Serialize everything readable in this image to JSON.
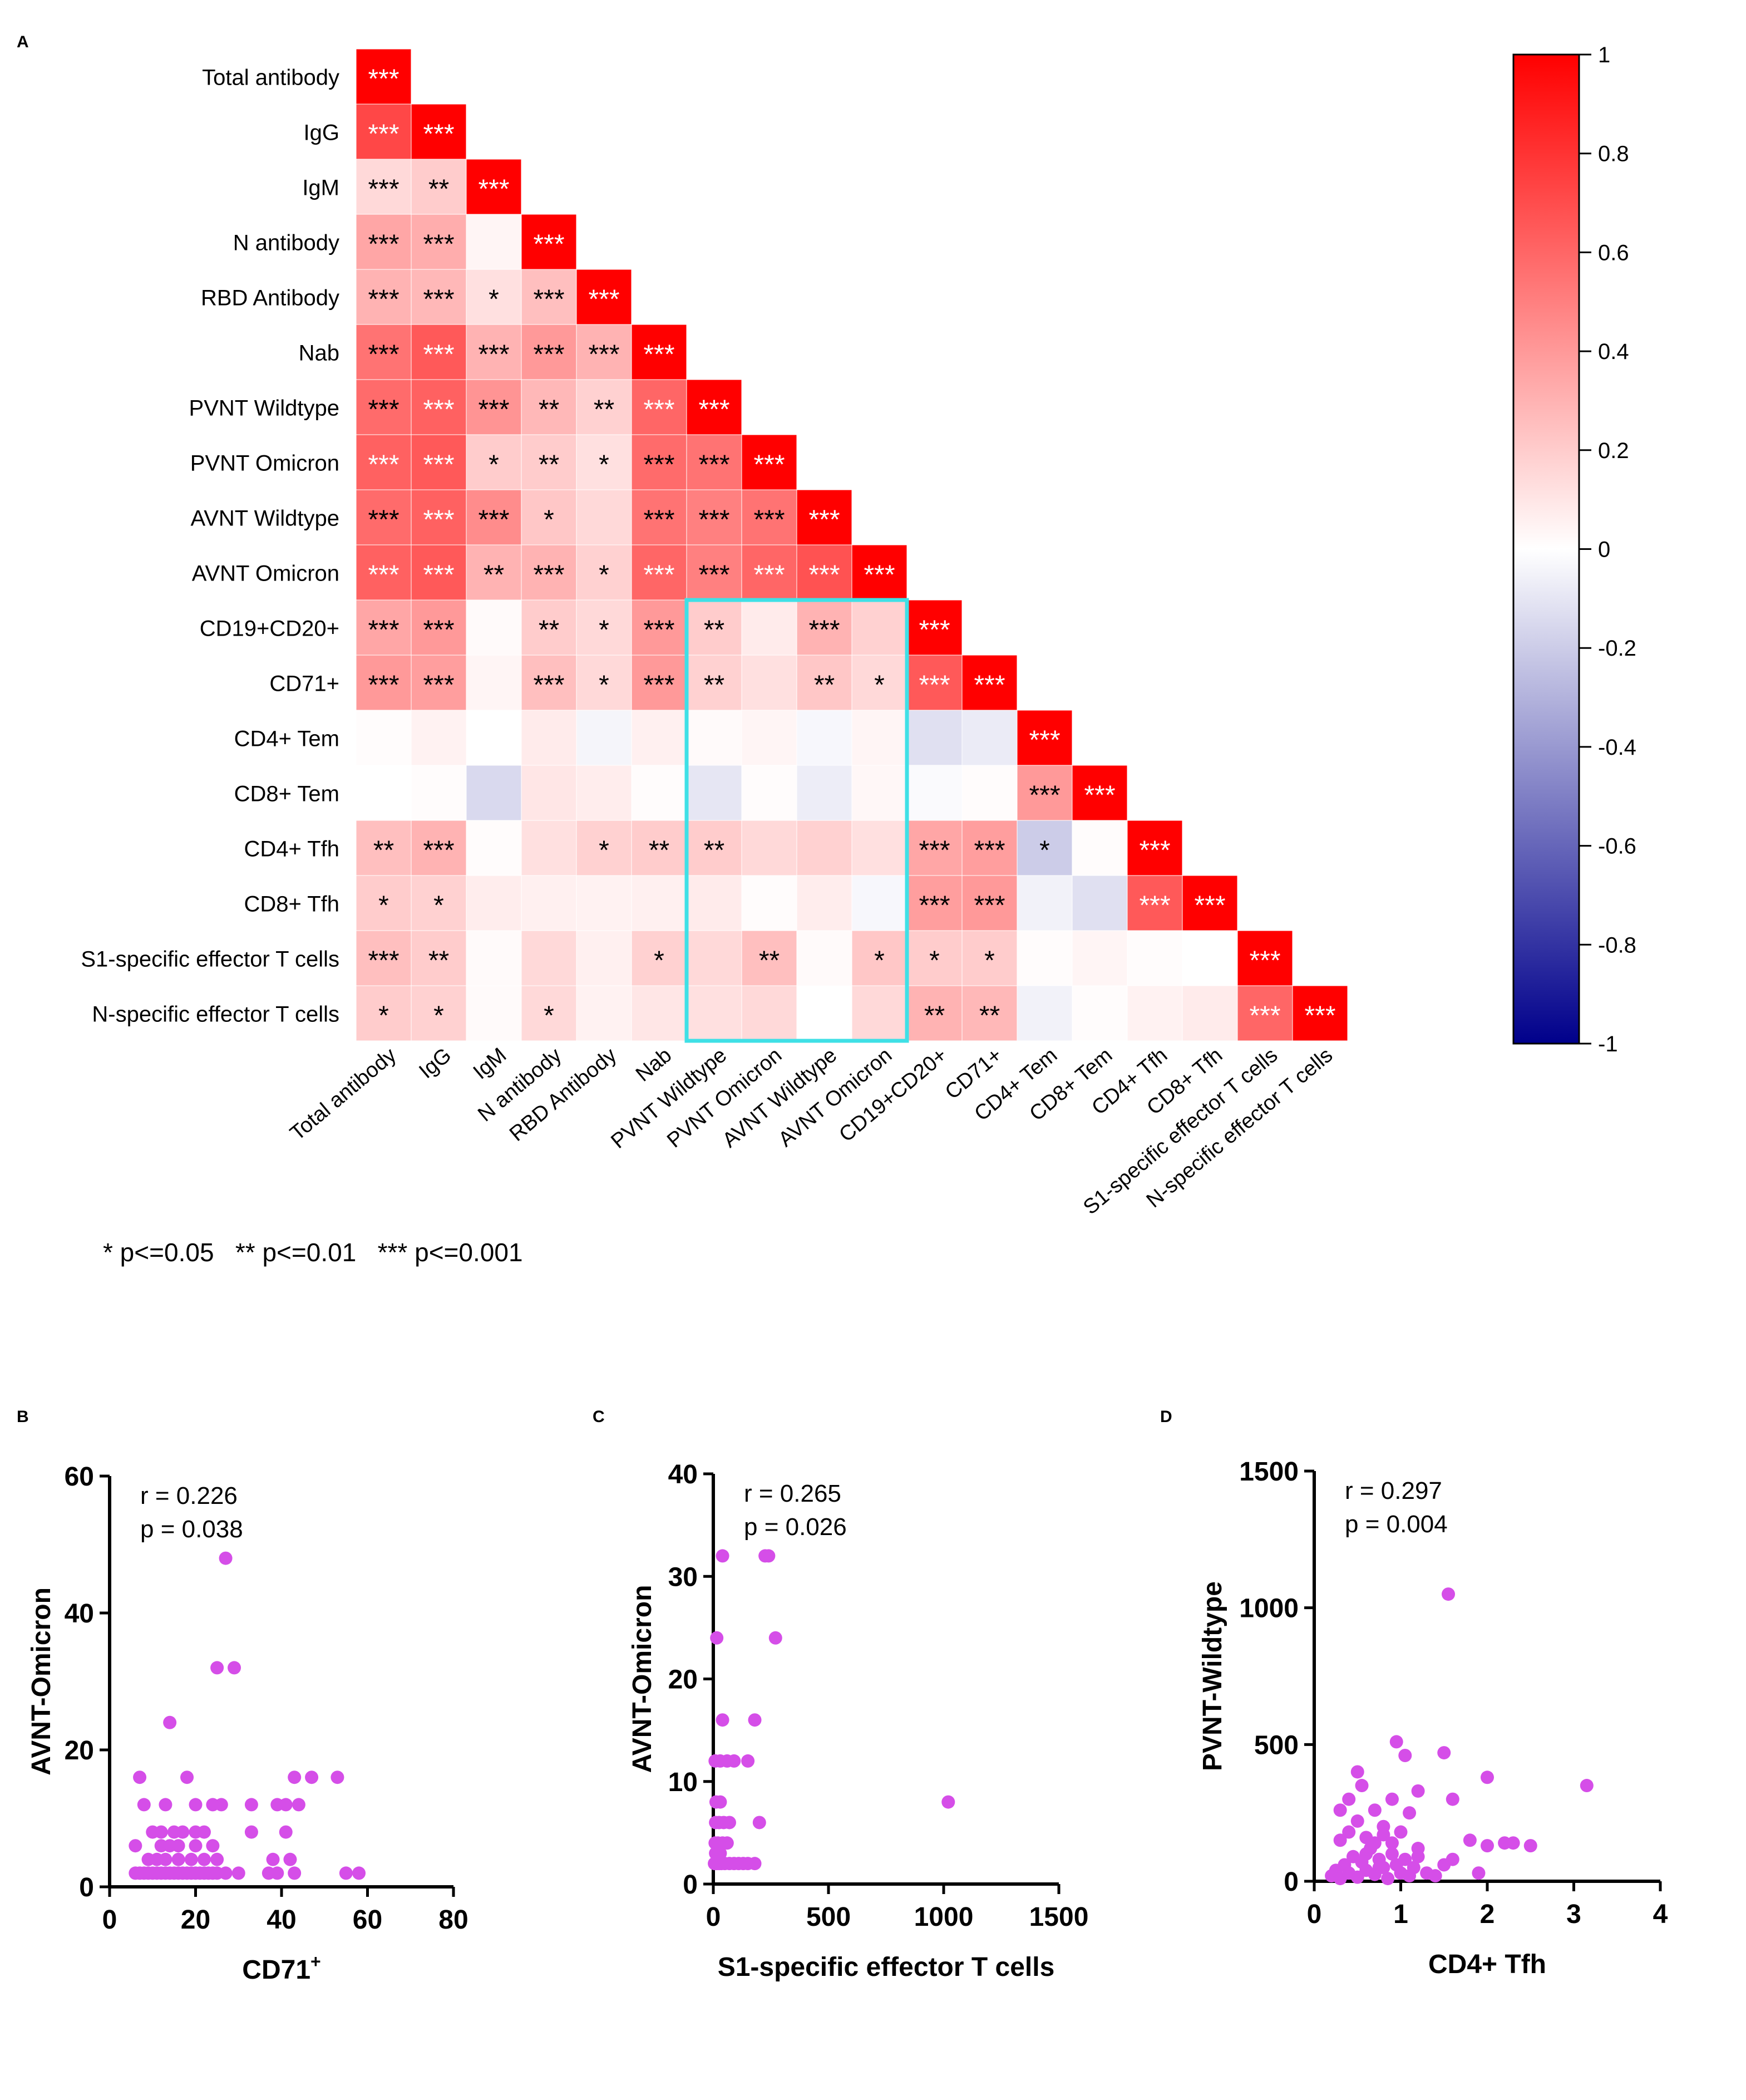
{
  "panel_labels": {
    "a": "A",
    "b": "B",
    "c": "C",
    "d": "D"
  },
  "significance_legend": "* p<=0.05   ** p<=0.01   *** p<=0.001",
  "chart_data": [
    {
      "type": "heatmap",
      "panel": "A",
      "title": "",
      "variables": [
        "Total antibody",
        "IgG",
        "IgM",
        "N antibody",
        "RBD Antibody",
        "Nab",
        "PVNT Wildtype",
        "PVNT Omicron",
        "AVNT Wildtype",
        "AVNT Omicron",
        "CD19+CD20+",
        "CD71+",
        "CD4+ Tem",
        "CD8+ Tem",
        "CD4+ Tfh",
        "CD8+ Tfh",
        "S1-specific effector T cells",
        "N-specific effector T cells"
      ],
      "colorscale": {
        "min": -1,
        "max": 1,
        "ticks": [
          "1",
          "0.8",
          "0.6",
          "0.4",
          "0.2",
          "0",
          "-0.2",
          "-0.4",
          "-0.6",
          "-0.8",
          "-1"
        ],
        "low_color": "#00008b",
        "mid_color": "#ffffff",
        "high_color": "#ff0000"
      },
      "values": [
        [
          1
        ],
        [
          0.72,
          1
        ],
        [
          0.15,
          0.2,
          1
        ],
        [
          0.35,
          0.32,
          0.04,
          1
        ],
        [
          0.3,
          0.28,
          0.12,
          0.25,
          1
        ],
        [
          0.55,
          0.65,
          0.3,
          0.4,
          0.3,
          1
        ],
        [
          0.58,
          0.62,
          0.42,
          0.28,
          0.18,
          0.6,
          1
        ],
        [
          0.62,
          0.65,
          0.2,
          0.2,
          0.12,
          0.58,
          0.55,
          1
        ],
        [
          0.58,
          0.62,
          0.45,
          0.22,
          0.15,
          0.55,
          0.5,
          0.55,
          1
        ],
        [
          0.62,
          0.65,
          0.3,
          0.3,
          0.18,
          0.6,
          0.5,
          0.6,
          0.68,
          1
        ],
        [
          0.35,
          0.4,
          0.02,
          0.2,
          0.15,
          0.4,
          0.2,
          0.08,
          0.3,
          0.18,
          1
        ],
        [
          0.4,
          0.38,
          0.04,
          0.25,
          0.15,
          0.4,
          0.18,
          0.12,
          0.22,
          0.15,
          0.65,
          1
        ],
        [
          0.01,
          0.05,
          0.0,
          0.08,
          -0.04,
          0.06,
          0.02,
          0.04,
          -0.03,
          0.04,
          -0.12,
          -0.08,
          1
        ],
        [
          0.0,
          0.01,
          -0.15,
          0.1,
          0.07,
          0.01,
          -0.1,
          0.01,
          -0.07,
          0.03,
          -0.02,
          0.01,
          0.4,
          1
        ],
        [
          0.25,
          0.3,
          0.01,
          0.12,
          0.18,
          0.2,
          0.2,
          0.15,
          0.18,
          0.12,
          0.35,
          0.38,
          -0.2,
          0.01,
          1
        ],
        [
          0.2,
          0.18,
          0.07,
          0.06,
          0.05,
          0.06,
          0.08,
          0.01,
          0.07,
          -0.03,
          0.38,
          0.4,
          -0.05,
          -0.12,
          0.65,
          1
        ],
        [
          0.25,
          0.2,
          0.02,
          0.15,
          0.06,
          0.18,
          0.15,
          0.25,
          0.02,
          0.22,
          0.2,
          0.2,
          0.01,
          0.04,
          0.01,
          0.0,
          1
        ],
        [
          0.2,
          0.18,
          0.02,
          0.15,
          0.05,
          0.1,
          0.12,
          0.15,
          0.0,
          0.15,
          0.3,
          0.28,
          -0.05,
          0.01,
          0.05,
          0.08,
          0.6,
          1
        ]
      ],
      "stars": [
        [
          "***"
        ],
        [
          "***",
          "***"
        ],
        [
          "***",
          "**",
          "***"
        ],
        [
          "***",
          "***",
          "",
          "***"
        ],
        [
          "***",
          "***",
          "*",
          "***",
          "***"
        ],
        [
          "***",
          "***",
          "***",
          "***",
          "***",
          "***"
        ],
        [
          "***",
          "***",
          "***",
          "**",
          "**",
          "***",
          "***"
        ],
        [
          "***",
          "***",
          "*",
          "**",
          "*",
          "***",
          "***",
          "***"
        ],
        [
          "***",
          "***",
          "***",
          "*",
          "",
          "***",
          "***",
          "***",
          "***"
        ],
        [
          "***",
          "***",
          "**",
          "***",
          "*",
          "***",
          "***",
          "***",
          "***",
          "***"
        ],
        [
          "***",
          "***",
          "",
          "**",
          "*",
          "***",
          "**",
          "",
          "***",
          "",
          "***"
        ],
        [
          "***",
          "***",
          "",
          "***",
          "*",
          "***",
          "**",
          "",
          "**",
          "*",
          "***",
          "***"
        ],
        [
          "",
          "",
          "",
          "",
          "",
          "",
          "",
          "",
          "",
          "",
          "",
          "",
          "***"
        ],
        [
          "",
          "",
          "",
          "",
          "",
          "",
          "",
          "",
          "",
          "",
          "",
          "",
          "***",
          "***"
        ],
        [
          "**",
          "***",
          "",
          "",
          "*",
          "**",
          "**",
          "",
          "",
          "",
          "***",
          "***",
          "*",
          "",
          "***"
        ],
        [
          "*",
          "*",
          "",
          "",
          "",
          "",
          "",
          "",
          "",
          "",
          "***",
          "***",
          "",
          "",
          "***",
          "***"
        ],
        [
          "***",
          "**",
          "",
          "",
          "",
          "*",
          "",
          "**",
          "",
          "*",
          "*",
          "*",
          "",
          "",
          "",
          "",
          "***"
        ],
        [
          "*",
          "*",
          "",
          "*",
          "",
          "",
          "",
          "",
          "",
          "",
          "**",
          "**",
          "",
          "",
          "",
          "",
          "***",
          "***"
        ]
      ],
      "highlight": {
        "rows": [
          "CD19+CD20+",
          "N-specific effector T cells"
        ],
        "cols": [
          "PVNT Wildtype",
          "AVNT Omicron"
        ],
        "color": "#3fe0e6"
      }
    },
    {
      "type": "scatter",
      "panel": "B",
      "xlabel": "CD71",
      "xlabel_sup": "+",
      "ylabel": "AVNT-Omicron",
      "xlim": [
        0,
        80
      ],
      "ylim": [
        0,
        60
      ],
      "xticks": [
        0,
        20,
        40,
        60,
        80
      ],
      "yticks": [
        0,
        20,
        40,
        60
      ],
      "annotation_r": "r = 0.226",
      "annotation_p": "p = 0.038",
      "point_color": "#d54ee8",
      "points": [
        [
          6,
          2
        ],
        [
          7,
          2
        ],
        [
          8,
          2
        ],
        [
          9,
          2
        ],
        [
          10,
          2
        ],
        [
          11,
          2
        ],
        [
          12,
          2
        ],
        [
          13,
          2
        ],
        [
          14,
          2
        ],
        [
          15,
          2
        ],
        [
          16,
          2
        ],
        [
          17,
          2
        ],
        [
          18,
          2
        ],
        [
          19,
          2
        ],
        [
          20,
          2
        ],
        [
          21,
          2
        ],
        [
          22,
          2
        ],
        [
          23,
          2
        ],
        [
          24,
          2
        ],
        [
          25,
          2
        ],
        [
          27,
          2
        ],
        [
          30,
          2
        ],
        [
          37,
          2
        ],
        [
          39,
          2
        ],
        [
          43,
          2
        ],
        [
          55,
          2
        ],
        [
          58,
          2
        ],
        [
          9,
          4
        ],
        [
          11,
          4
        ],
        [
          13,
          4
        ],
        [
          16,
          4
        ],
        [
          19,
          4
        ],
        [
          22,
          4
        ],
        [
          25,
          4
        ],
        [
          38,
          4
        ],
        [
          42,
          4
        ],
        [
          12,
          6
        ],
        [
          14,
          6
        ],
        [
          16,
          6
        ],
        [
          20,
          6
        ],
        [
          24,
          6
        ],
        [
          6,
          6
        ],
        [
          10,
          8
        ],
        [
          12,
          8
        ],
        [
          15,
          8
        ],
        [
          17,
          8
        ],
        [
          20,
          8
        ],
        [
          22,
          8
        ],
        [
          33,
          8
        ],
        [
          41,
          8
        ],
        [
          8,
          12
        ],
        [
          13,
          12
        ],
        [
          20,
          12
        ],
        [
          24,
          12
        ],
        [
          26,
          12
        ],
        [
          33,
          12
        ],
        [
          39,
          12
        ],
        [
          41,
          12
        ],
        [
          44,
          12
        ],
        [
          7,
          16
        ],
        [
          18,
          16
        ],
        [
          43,
          16
        ],
        [
          47,
          16
        ],
        [
          53,
          16
        ],
        [
          14,
          24
        ],
        [
          25,
          32
        ],
        [
          29,
          32
        ],
        [
          27,
          48
        ]
      ]
    },
    {
      "type": "scatter",
      "panel": "C",
      "xlabel": "S1-specific effector T cells",
      "ylabel": "AVNT-Omicron",
      "xlim": [
        0,
        1500
      ],
      "ylim": [
        0,
        40
      ],
      "xticks": [
        0,
        500,
        1000,
        1500
      ],
      "yticks": [
        0,
        10,
        20,
        30,
        40
      ],
      "annotation_r": "r = 0.265",
      "annotation_p": "p = 0.026",
      "point_color": "#d54ee8",
      "points": [
        [
          5,
          2
        ],
        [
          15,
          2
        ],
        [
          25,
          2
        ],
        [
          35,
          2
        ],
        [
          50,
          2
        ],
        [
          70,
          2
        ],
        [
          90,
          2
        ],
        [
          110,
          2
        ],
        [
          130,
          2
        ],
        [
          150,
          2
        ],
        [
          180,
          2
        ],
        [
          10,
          3
        ],
        [
          30,
          3
        ],
        [
          8,
          4
        ],
        [
          20,
          4
        ],
        [
          40,
          4
        ],
        [
          60,
          4
        ],
        [
          10,
          6
        ],
        [
          25,
          6
        ],
        [
          45,
          6
        ],
        [
          70,
          6
        ],
        [
          200,
          6
        ],
        [
          12,
          8
        ],
        [
          30,
          8
        ],
        [
          1020,
          8
        ],
        [
          8,
          12
        ],
        [
          30,
          12
        ],
        [
          60,
          12
        ],
        [
          90,
          12
        ],
        [
          150,
          12
        ],
        [
          40,
          16
        ],
        [
          180,
          16
        ],
        [
          15,
          24
        ],
        [
          270,
          24
        ],
        [
          40,
          32
        ],
        [
          225,
          32
        ],
        [
          240,
          32
        ]
      ]
    },
    {
      "type": "scatter",
      "panel": "D",
      "xlabel": "CD4+ Tfh",
      "ylabel": "PVNT-Wildtype",
      "xlim": [
        0,
        4
      ],
      "ylim": [
        0,
        1500
      ],
      "xticks": [
        0,
        1,
        2,
        3,
        4
      ],
      "yticks": [
        0,
        500,
        1000,
        1500
      ],
      "annotation_r": "r = 0.297",
      "annotation_p": "p = 0.004",
      "point_color": "#d54ee8",
      "points": [
        [
          0.2,
          20
        ],
        [
          0.25,
          40
        ],
        [
          0.3,
          10
        ],
        [
          0.35,
          60
        ],
        [
          0.4,
          30
        ],
        [
          0.45,
          90
        ],
        [
          0.5,
          15
        ],
        [
          0.55,
          70
        ],
        [
          0.6,
          40
        ],
        [
          0.65,
          120
        ],
        [
          0.7,
          25
        ],
        [
          0.75,
          80
        ],
        [
          0.8,
          50
        ],
        [
          0.85,
          10
        ],
        [
          0.9,
          100
        ],
        [
          0.95,
          60
        ],
        [
          1.0,
          30
        ],
        [
          1.05,
          80
        ],
        [
          1.1,
          20
        ],
        [
          1.15,
          50
        ],
        [
          1.2,
          90
        ],
        [
          1.3,
          30
        ],
        [
          1.4,
          20
        ],
        [
          1.5,
          60
        ],
        [
          0.3,
          150
        ],
        [
          0.4,
          180
        ],
        [
          0.5,
          220
        ],
        [
          0.6,
          160
        ],
        [
          0.7,
          260
        ],
        [
          0.8,
          200
        ],
        [
          0.9,
          140
        ],
        [
          1.0,
          180
        ],
        [
          1.1,
          250
        ],
        [
          1.2,
          120
        ],
        [
          0.3,
          260
        ],
        [
          0.4,
          300
        ],
        [
          0.55,
          350
        ],
        [
          0.6,
          100
        ],
        [
          0.7,
          140
        ],
        [
          0.8,
          170
        ],
        [
          0.9,
          300
        ],
        [
          0.5,
          400
        ],
        [
          0.75,
          50
        ],
        [
          1.6,
          80
        ],
        [
          1.8,
          150
        ],
        [
          2.0,
          130
        ],
        [
          2.2,
          140
        ],
        [
          2.3,
          140
        ],
        [
          2.5,
          130
        ],
        [
          1.9,
          30
        ],
        [
          2.0,
          380
        ],
        [
          1.6,
          300
        ],
        [
          1.2,
          330
        ],
        [
          0.95,
          510
        ],
        [
          1.05,
          460
        ],
        [
          1.5,
          470
        ],
        [
          3.15,
          350
        ],
        [
          1.55,
          1050
        ]
      ]
    }
  ]
}
